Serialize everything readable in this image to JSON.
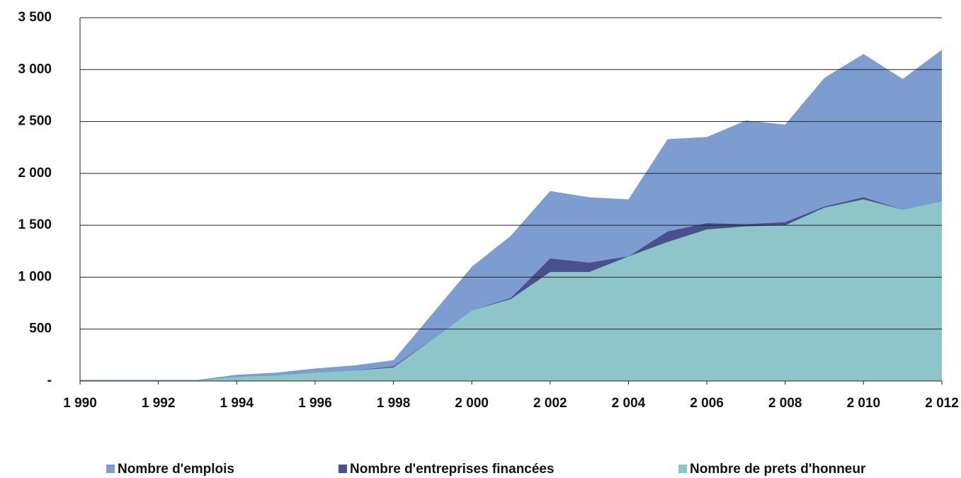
{
  "chart_data": {
    "type": "area",
    "x": [
      1990,
      1991,
      1992,
      1993,
      1994,
      1995,
      1996,
      1997,
      1998,
      1999,
      2000,
      2001,
      2002,
      2003,
      2004,
      2005,
      2006,
      2007,
      2008,
      2009,
      2010,
      2011,
      2012
    ],
    "series": [
      {
        "name": "Nombre d'emplois",
        "color": "#7d9dd0",
        "values": [
          10,
          10,
          10,
          10,
          60,
          80,
          120,
          150,
          200,
          650,
          1100,
          1400,
          1830,
          1770,
          1750,
          2330,
          2350,
          2510,
          2470,
          2920,
          3150,
          2910,
          3190
        ]
      },
      {
        "name": "Nombre d'entreprises financées",
        "color": "#4a4f8e",
        "values": [
          5,
          5,
          5,
          5,
          40,
          55,
          80,
          100,
          140,
          400,
          680,
          800,
          1180,
          1140,
          1200,
          1440,
          1520,
          1510,
          1530,
          1680,
          1770,
          1650,
          1730
        ]
      },
      {
        "name": "Nombre de prets d'honneur",
        "color": "#8dc5c9",
        "values": [
          5,
          5,
          5,
          5,
          40,
          55,
          80,
          100,
          130,
          400,
          680,
          790,
          1050,
          1050,
          1200,
          1340,
          1460,
          1490,
          1500,
          1670,
          1750,
          1650,
          1730
        ]
      }
    ],
    "xlim": [
      1990,
      2012
    ],
    "xticks": [
      {
        "value": 1990,
        "label": "1 990"
      },
      {
        "value": 1992,
        "label": "1 992"
      },
      {
        "value": 1994,
        "label": "1 994"
      },
      {
        "value": 1996,
        "label": "1 996"
      },
      {
        "value": 1998,
        "label": "1 998"
      },
      {
        "value": 2000,
        "label": "2 000"
      },
      {
        "value": 2002,
        "label": "2 002"
      },
      {
        "value": 2004,
        "label": "2 004"
      },
      {
        "value": 2006,
        "label": "2 006"
      },
      {
        "value": 2008,
        "label": "2 008"
      },
      {
        "value": 2010,
        "label": "2 010"
      },
      {
        "value": 2012,
        "label": "2 012"
      }
    ],
    "ylim": [
      0,
      3500
    ],
    "yticks": [
      {
        "value": 0,
        "label": "-"
      },
      500,
      {
        "value": 1000,
        "label": "1 000"
      },
      {
        "value": 1500,
        "label": "1 500"
      },
      {
        "value": 2000,
        "label": "2 000"
      },
      {
        "value": 2500,
        "label": "2 500"
      },
      {
        "value": 3000,
        "label": "3 000"
      },
      {
        "value": 3500,
        "label": "3 500"
      }
    ],
    "grid": true,
    "legend": "bottom"
  }
}
